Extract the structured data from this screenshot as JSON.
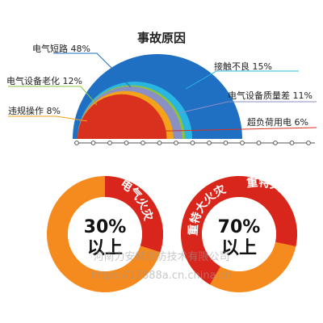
{
  "chart_data": [
    {
      "type": "pie",
      "style": "nested-semicircle",
      "title": "事故原因",
      "slices": [
        {
          "label": "电气短路 48%",
          "value": 48,
          "color": "#1f6fc2"
        },
        {
          "label": "电气设备老化 12%",
          "value": 12,
          "color": "#8dc33c"
        },
        {
          "label": "违规操作 8%",
          "value": 8,
          "color": "#f5a21b"
        },
        {
          "label": "接触不良 15%",
          "value": 15,
          "color": "#29b6e3"
        },
        {
          "label": "电气设备质量差 11%",
          "value": 11,
          "color": "#8a8fc4"
        },
        {
          "label": "超负荷用电 6%",
          "value": 6,
          "color": "#d8321f"
        }
      ]
    },
    {
      "type": "pie",
      "style": "donut",
      "center_value": "30%",
      "center_suffix": "以上",
      "ring_text": "电气火灾",
      "percent": 30,
      "highlight_color": "#d9261c",
      "base_color": "#f58a1f"
    },
    {
      "type": "pie",
      "style": "donut",
      "center_value": "70%",
      "center_suffix": "以上",
      "ring_text": "重特大火灾",
      "ring_text_2": "重特大电气火灾",
      "percent": 70,
      "highlight_color": "#d9261c",
      "base_color": "#f58a1f"
    }
  ],
  "watermark": {
    "line1": "河南力安特消防技术有限公司",
    "line2": "https://17888a.cn.china.cn"
  }
}
